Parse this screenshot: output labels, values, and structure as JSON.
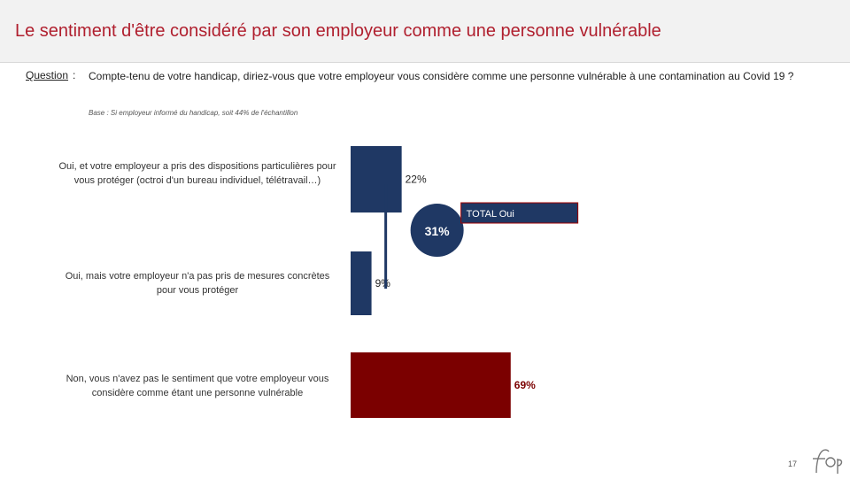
{
  "header": {
    "title": "Le sentiment d'être considéré par son employeur comme une personne vulnérable"
  },
  "question": {
    "label": "Question",
    "colon": ":",
    "text": "Compte-tenu de votre handicap, diriez-vous que votre employeur vous considère comme une personne vulnérable à une contamination au Covid 19 ?"
  },
  "base_note": "Base : Si employeur informé du handicap, soit 44% de l'échantillon",
  "chart_data": {
    "type": "bar",
    "orientation": "horizontal",
    "title": "",
    "categories": [
      "Oui, et votre employeur a pris des dispositions particulières pour vous protéger (octroi d'un bureau individuel, télétravail…)",
      "Oui, mais votre employeur n'a pas pris de mesures concrètes pour vous protéger",
      "Non, vous n'avez pas le sentiment que votre employeur vous considère comme étant une personne vulnérable"
    ],
    "values": [
      22,
      9,
      69
    ],
    "value_labels": [
      "22%",
      "9%",
      "69%"
    ],
    "colors": [
      "#1f3864",
      "#1f3864",
      "#7b0000"
    ],
    "xlim": [
      0,
      100
    ],
    "total": {
      "label": "TOTAL Oui",
      "value": 31,
      "value_label": "31%",
      "color": "#1f3864"
    }
  },
  "footer": {
    "page_number": "17",
    "logo_text": "ifop"
  }
}
